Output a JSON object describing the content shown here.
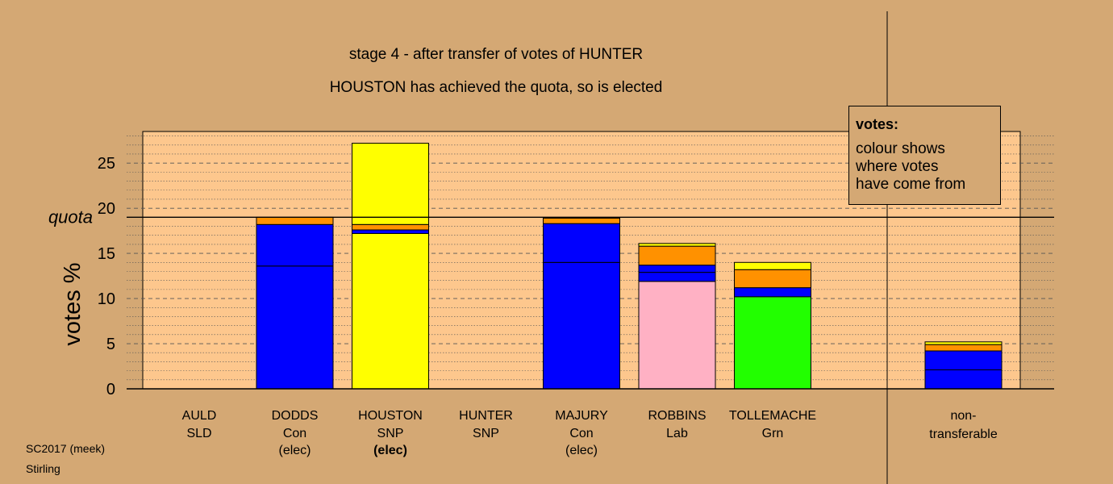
{
  "chart_data": {
    "type": "bar",
    "title": "stage 4 - after transfer of votes of HUNTER",
    "subtitle": "HOUSTON has achieved the quota, so is elected",
    "ylabel": "votes %",
    "ylim": [
      0,
      28.5
    ],
    "yticks": [
      "0",
      "5",
      "10",
      "15",
      "20",
      "25"
    ],
    "quota": {
      "label": "quota",
      "value": 19
    },
    "grid": true,
    "legend": {
      "title": "votes:",
      "lines": [
        "colour shows",
        "where votes",
        "have come from"
      ],
      "position": "top-right"
    },
    "colors": {
      "background": "#d4a874",
      "plot": "#fdc78d",
      "Con": "#0000ff",
      "SNP": "#ffff00",
      "Lab": "#ffb1c4",
      "Grn": "#22ff00",
      "transfer": "#ff9100"
    },
    "candidates": [
      {
        "name": "AULD",
        "party": "SLD",
        "status": "",
        "status_bold": false,
        "segments": []
      },
      {
        "name": "DODDS",
        "party": "Con",
        "status": "(elec)",
        "status_bold": false,
        "segments": [
          {
            "from": "Con",
            "value": 13.6
          },
          {
            "from": "Con",
            "value": 4.6
          },
          {
            "from": "transfer",
            "value": 0.8
          }
        ]
      },
      {
        "name": "HOUSTON",
        "party": "SNP",
        "status": "(elec)",
        "status_bold": true,
        "segments": [
          {
            "from": "SNP",
            "value": 17.2
          },
          {
            "from": "Con",
            "value": 0.4
          },
          {
            "from": "transfer",
            "value": 0.6
          },
          {
            "from": "SNP",
            "value": 9.0
          }
        ]
      },
      {
        "name": "HUNTER",
        "party": "SNP",
        "status": "",
        "status_bold": false,
        "segments": []
      },
      {
        "name": "MAJURY",
        "party": "Con",
        "status": "(elec)",
        "status_bold": false,
        "segments": [
          {
            "from": "Con",
            "value": 14.0
          },
          {
            "from": "Con",
            "value": 4.3
          },
          {
            "from": "transfer",
            "value": 0.6
          }
        ]
      },
      {
        "name": "ROBBINS",
        "party": "Lab",
        "status": "",
        "status_bold": false,
        "segments": [
          {
            "from": "Lab",
            "value": 11.9
          },
          {
            "from": "Con",
            "value": 1.0
          },
          {
            "from": "Con",
            "value": 0.8
          },
          {
            "from": "transfer",
            "value": 2.1
          },
          {
            "from": "SNP",
            "value": 0.3
          }
        ]
      },
      {
        "name": "TOLLEMACHE",
        "party": "Grn",
        "status": "",
        "status_bold": false,
        "segments": [
          {
            "from": "Grn",
            "value": 10.2
          },
          {
            "from": "Con",
            "value": 1.0
          },
          {
            "from": "transfer",
            "value": 2.0
          },
          {
            "from": "SNP",
            "value": 0.8
          }
        ]
      }
    ],
    "nontransferable": {
      "label_line1": "non-",
      "label_line2": "transferable",
      "segments": [
        {
          "from": "Con",
          "value": 2.1
        },
        {
          "from": "Con",
          "value": 2.1
        },
        {
          "from": "transfer",
          "value": 0.7
        },
        {
          "from": "SNP",
          "value": 0.3
        }
      ]
    }
  },
  "footer": {
    "line1": "SC2017 (meek)",
    "line2": "Stirling"
  }
}
